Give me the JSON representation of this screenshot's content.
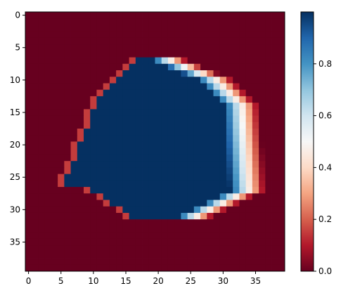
{
  "chart_data": {
    "type": "heatmap",
    "colormap": "RdBu",
    "rows": 40,
    "cols": 40,
    "vmin": 0.0,
    "vmax": 1.0,
    "x_ticks": [
      "0",
      "5",
      "10",
      "15",
      "20",
      "25",
      "30",
      "35"
    ],
    "y_ticks": [
      "0",
      "5",
      "10",
      "15",
      "20",
      "25",
      "30",
      "35"
    ],
    "colorbar_ticks": [
      {
        "value": 0.0,
        "label": "0.0"
      },
      {
        "value": 0.2,
        "label": "0.2"
      },
      {
        "value": 0.4,
        "label": "0.4"
      },
      {
        "value": 0.6,
        "label": "0.6"
      },
      {
        "value": 0.8,
        "label": "0.8"
      }
    ],
    "grid": false,
    "colorbar": "right",
    "description": "A blob of high values (~1.0) spanning rows 7-31 and columns 6-35, with left edge near x=6-12 and a soft-falling right edge at x~29-36; background is 0."
  }
}
